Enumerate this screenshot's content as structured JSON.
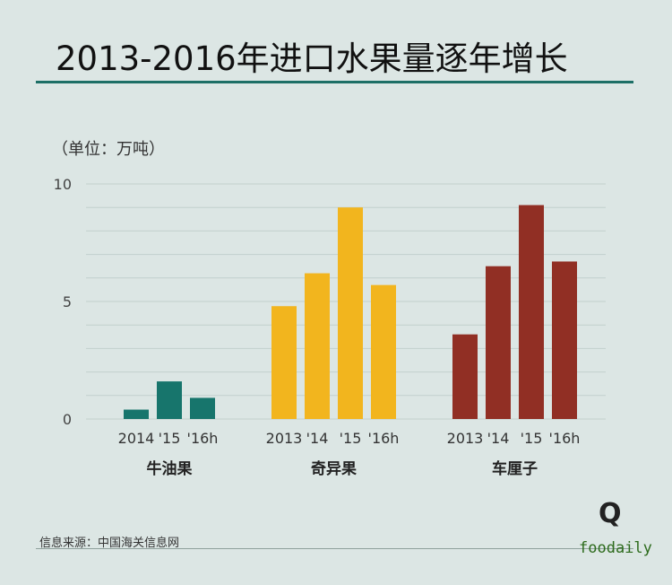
{
  "title": "2013-2016年进口水果量逐年增长",
  "unit_label": "（单位：万吨）",
  "source": "信息来源：中国海关信息网",
  "logo": {
    "mark": "Q",
    "text": "foodaily"
  },
  "colors": {
    "background": "#dce6e4",
    "accent": "#1d6f66",
    "avocado": "#17756c",
    "kiwi": "#f2b51e",
    "cherry": "#912f24"
  },
  "chart_data": {
    "type": "bar",
    "ylim": [
      0,
      10
    ],
    "yticks": [
      0,
      5,
      10
    ],
    "grid": true,
    "groups": [
      {
        "name": "牛油果",
        "color": "#17756c",
        "categories": [
          "2014",
          "'15",
          "'16h"
        ],
        "values": [
          0.4,
          1.6,
          0.9
        ]
      },
      {
        "name": "奇异果",
        "color": "#f2b51e",
        "categories": [
          "2013",
          "'14",
          "'15",
          "'16h"
        ],
        "values": [
          4.8,
          6.2,
          9.0,
          5.7
        ]
      },
      {
        "name": "车厘子",
        "color": "#912f24",
        "categories": [
          "2013",
          "'14",
          "'15",
          "'16h"
        ],
        "values": [
          3.6,
          6.5,
          9.1,
          6.7
        ]
      }
    ]
  }
}
